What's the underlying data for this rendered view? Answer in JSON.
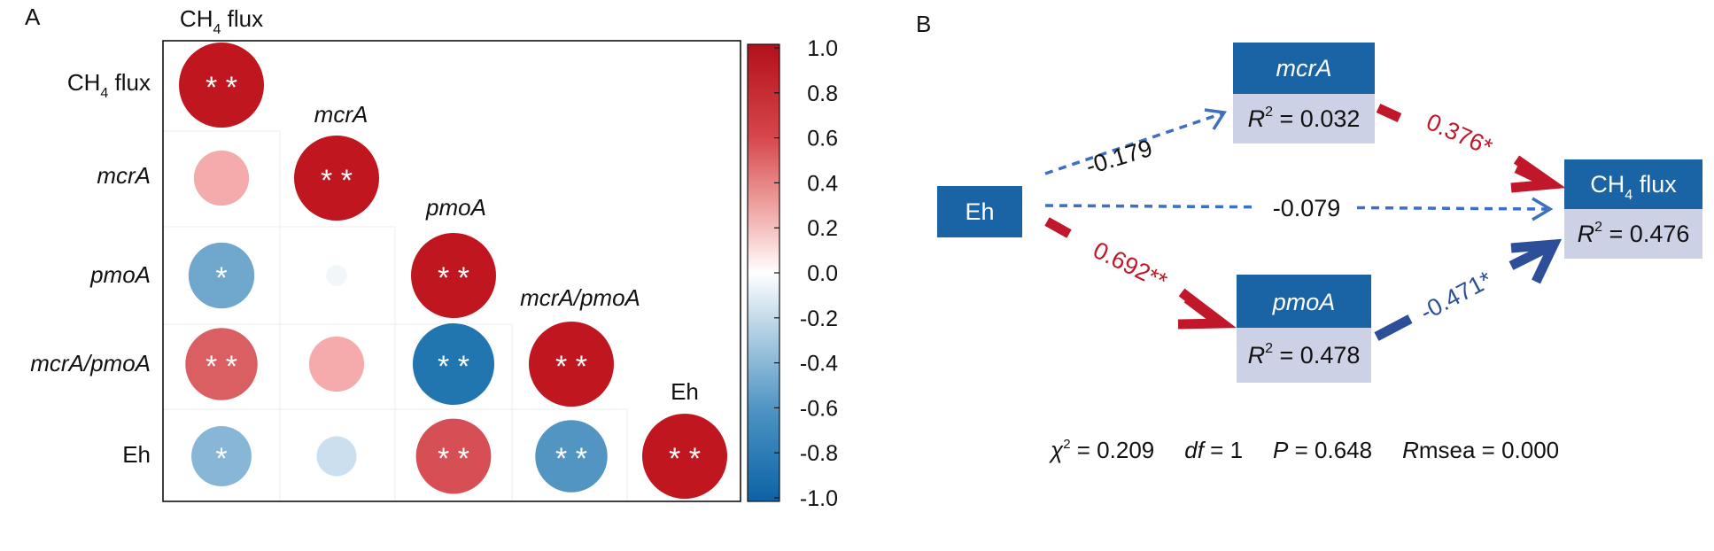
{
  "panel_a": {
    "letter": "A",
    "variables": [
      {
        "main": "CH",
        "sub": "4",
        "rest": " flux",
        "italic": false
      },
      {
        "main": "mcrA",
        "sub": "",
        "rest": "",
        "italic": true
      },
      {
        "main": "pmoA",
        "sub": "",
        "rest": "",
        "italic": true
      },
      {
        "main": "mcrA/pmoA",
        "sub": "",
        "rest": "",
        "italic": true
      },
      {
        "main": "Eh",
        "sub": "",
        "rest": "",
        "italic": false
      }
    ],
    "colors": {
      "positive": "#c0161f",
      "neutral": "#ffffff",
      "negative": "#0e6aa8",
      "pos_mid": "#f4a5a5",
      "neg_mid": "#8cbcd8"
    },
    "chart_data": {
      "type": "heatmap",
      "rows": [
        "CH4 flux",
        "mcrA",
        "pmoA",
        "mcrA/pmoA",
        "Eh"
      ],
      "cells": [
        {
          "row": 0,
          "col": 0,
          "r": 1.0,
          "sig": "**"
        },
        {
          "row": 1,
          "col": 0,
          "r": 0.42,
          "sig": ""
        },
        {
          "row": 1,
          "col": 1,
          "r": 1.0,
          "sig": "**"
        },
        {
          "row": 2,
          "col": 0,
          "r": -0.6,
          "sig": "*"
        },
        {
          "row": 2,
          "col": 1,
          "r": -0.06,
          "sig": ""
        },
        {
          "row": 2,
          "col": 2,
          "r": 1.0,
          "sig": "**"
        },
        {
          "row": 3,
          "col": 0,
          "r": 0.72,
          "sig": "**"
        },
        {
          "row": 3,
          "col": 1,
          "r": 0.42,
          "sig": ""
        },
        {
          "row": 3,
          "col": 2,
          "r": -0.92,
          "sig": "**"
        },
        {
          "row": 3,
          "col": 3,
          "r": 1.0,
          "sig": "**"
        },
        {
          "row": 4,
          "col": 0,
          "r": -0.5,
          "sig": "*"
        },
        {
          "row": 4,
          "col": 1,
          "r": -0.22,
          "sig": ""
        },
        {
          "row": 4,
          "col": 2,
          "r": 0.78,
          "sig": "**"
        },
        {
          "row": 4,
          "col": 3,
          "r": -0.72,
          "sig": "**"
        },
        {
          "row": 4,
          "col": 4,
          "r": 1.0,
          "sig": "**"
        }
      ],
      "colorbar_ticks": [
        "1.0",
        "0.8",
        "0.6",
        "0.4",
        "0.2",
        "0.0",
        "-0.2",
        "-0.4",
        "-0.6",
        "-0.8",
        "-1.0"
      ],
      "range": [
        -1,
        1
      ]
    }
  },
  "panel_b": {
    "letter": "B",
    "nodes": {
      "eh": {
        "label": "Eh"
      },
      "mcra": {
        "label": "mcrA",
        "r2_prefix": "R",
        "r2_sup": "2",
        "r2_value": " = 0.032"
      },
      "pmoa": {
        "label": "pmoA",
        "r2_prefix": "R",
        "r2_sup": "2",
        "r2_value": " = 0.478"
      },
      "ch4": {
        "label_main": "CH",
        "label_sub": "4",
        "label_rest": " flux",
        "r2_prefix": "R",
        "r2_sup": "2",
        "r2_value": " = 0.476"
      }
    },
    "paths": {
      "eh_mcra": "-0.179",
      "eh_ch4": "-0.079",
      "eh_pmoa": "0.692**",
      "mcra_ch4": "0.376*",
      "pmoa_ch4": "-0.471*"
    },
    "fit": {
      "chi_sym": "χ",
      "chi_sup": "2",
      "chi_val": " = 0.209",
      "df_sym": "df",
      "df_val": " = 1",
      "p_sym": "P",
      "p_val": " = 0.648",
      "rmsea_sym": "R",
      "rmsea_rest": "msea = 0.000"
    },
    "colors": {
      "box_dark": "#1a64a6",
      "box_light": "#ccd1e6",
      "positive_path": "#c0182a",
      "negative_path": "#2d4f9a",
      "dashed_path": "#3f6fbf"
    }
  }
}
